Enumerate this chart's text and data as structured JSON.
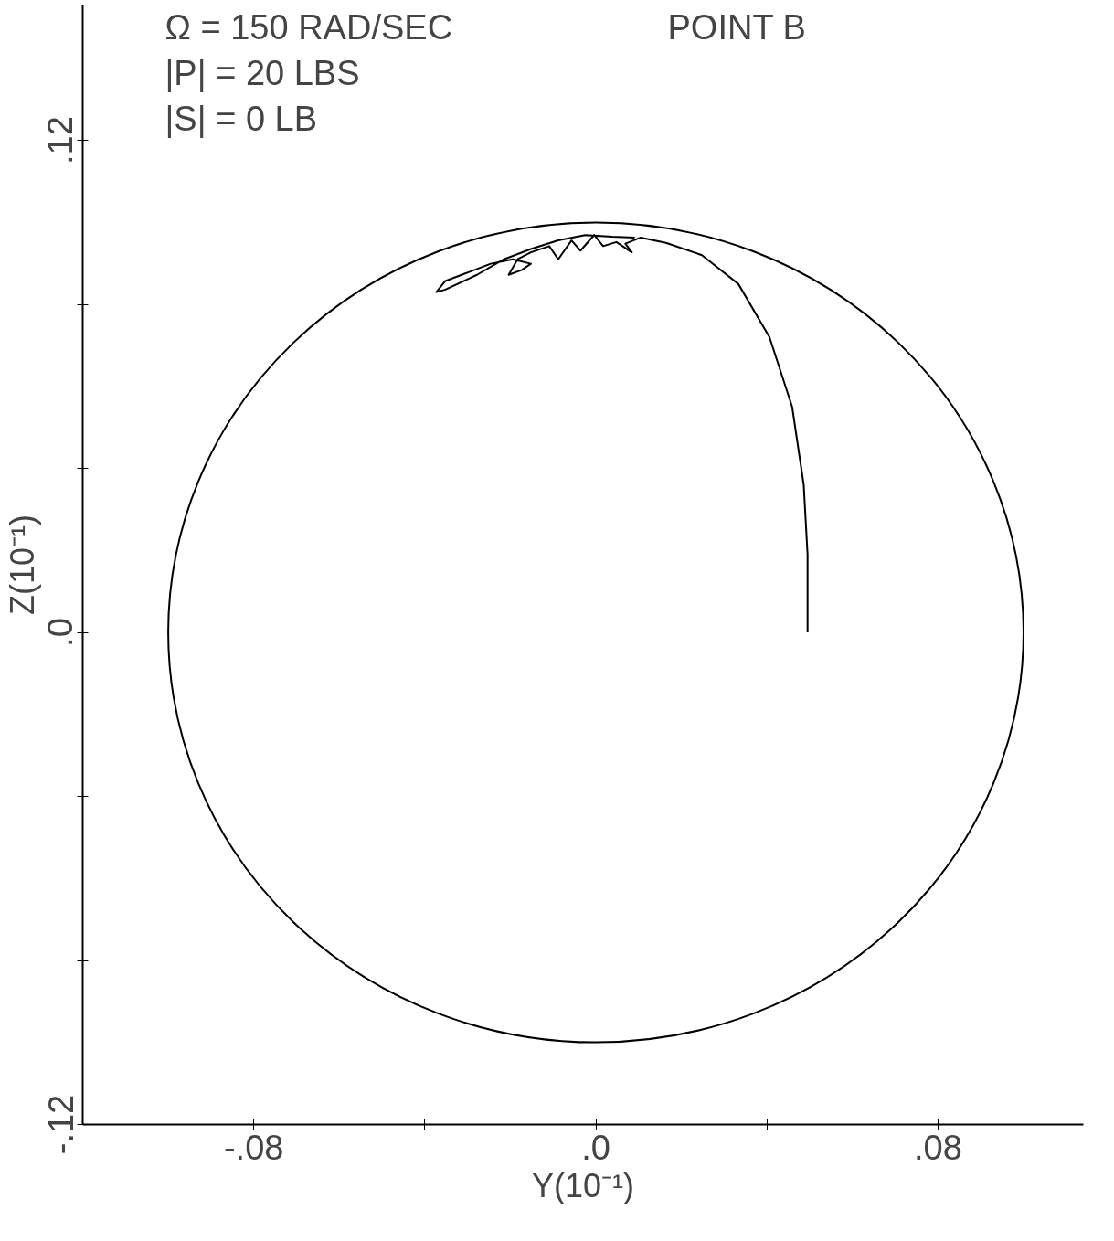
{
  "chart_data": {
    "type": "line",
    "xlabel": "Y(10⁻¹)",
    "ylabel": "Z(10⁻¹)",
    "annotations": [
      "Ω = 150   RAD/SEC",
      "|P| = 20   LBS",
      "|S| = 0     LB",
      "POINT B"
    ],
    "xlim": [
      -0.12,
      0.114
    ],
    "ylim": [
      -0.12,
      0.153
    ],
    "xticks": [
      {
        "value": -0.08,
        "label": "-.08"
      },
      {
        "value": -0.04,
        "label": null
      },
      {
        "value": 0,
        "label": ".0"
      },
      {
        "value": 0.04,
        "label": null
      },
      {
        "value": 0.08,
        "label": ".08"
      }
    ],
    "yticks": [
      {
        "value": -0.12,
        "label": "-.12"
      },
      {
        "value": -0.08,
        "label": null
      },
      {
        "value": -0.04,
        "label": null
      },
      {
        "value": 0,
        "label": ".0"
      },
      {
        "value": 0.04,
        "label": null
      },
      {
        "value": 0.08,
        "label": null
      },
      {
        "value": 0.12,
        "label": ".12"
      }
    ],
    "grid": false,
    "marker": "none",
    "line_style": "solid",
    "series": [
      {
        "color": "#000000",
        "x": [
          0.0495,
          0.0495,
          0.0486,
          0.0459,
          0.0406,
          0.0333,
          0.0248,
          0.0164,
          0.0105,
          0.0069,
          0.0084,
          0.0048,
          0.0017,
          -0.0004,
          -0.0036,
          -0.0057,
          -0.0088,
          -0.0109,
          -0.0152,
          -0.0183,
          -0.0204,
          -0.0173,
          -0.0152,
          -0.0194,
          -0.0246,
          -0.0299,
          -0.0352,
          -0.0373,
          -0.0352,
          -0.0278,
          -0.0215,
          -0.0152,
          -0.0088,
          -0.0025,
          0.0038,
          0.0091
        ],
        "values": [
          0,
          0.019,
          0.036,
          0.055,
          0.072,
          0.085,
          0.092,
          0.095,
          0.0963,
          0.0948,
          0.0927,
          0.0952,
          0.0942,
          0.0969,
          0.0931,
          0.0956,
          0.091,
          0.0942,
          0.0927,
          0.091,
          0.0872,
          0.0884,
          0.0899,
          0.091,
          0.0899,
          0.0878,
          0.0857,
          0.083,
          0.0836,
          0.0872,
          0.091,
          0.0935,
          0.0956,
          0.0969,
          0.0965,
          0.0963
        ]
      }
    ]
  }
}
